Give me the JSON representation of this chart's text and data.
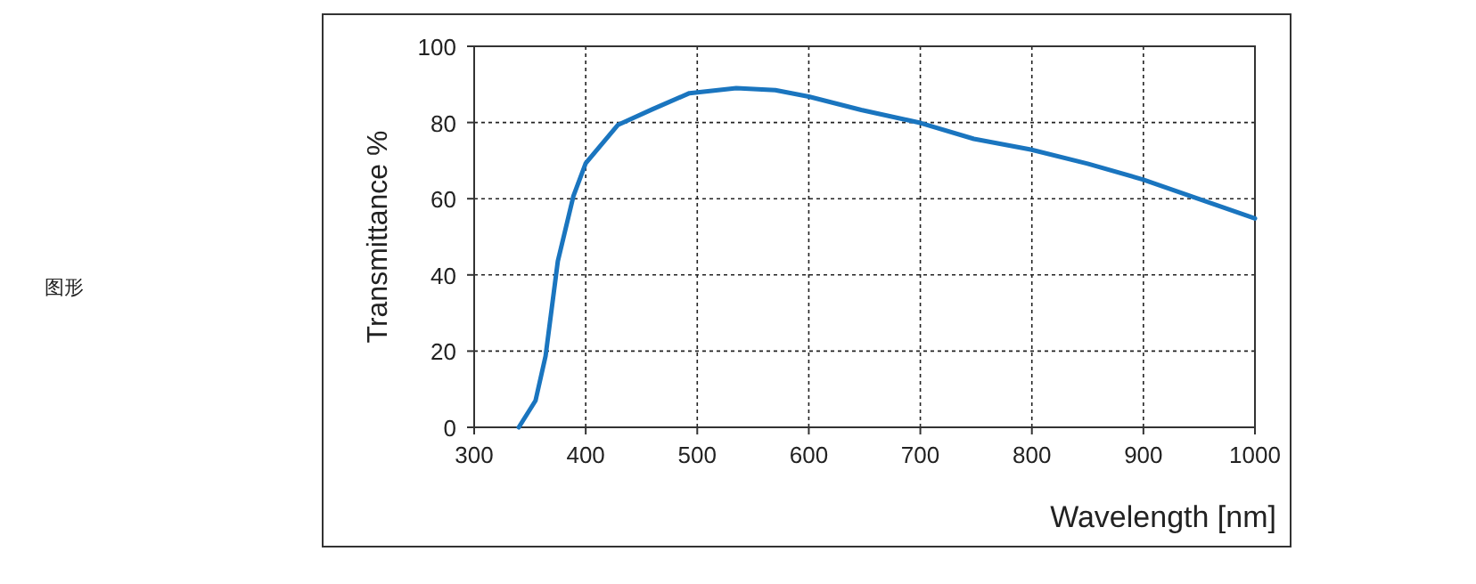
{
  "chart_data": {
    "type": "line",
    "xlabel": "Wavelength [nm]",
    "ylabel": "Transmittance %",
    "annotations": [
      "图形"
    ],
    "xlim": [
      300,
      1000
    ],
    "ylim": [
      0,
      100
    ],
    "xticks": [
      300,
      400,
      500,
      600,
      700,
      800,
      900,
      1000
    ],
    "yticks": [
      0,
      20,
      40,
      60,
      80,
      100
    ],
    "grid": true,
    "series": [
      {
        "color": "#1a75bf",
        "x": [
          340,
          355,
          364,
          375,
          389,
          400,
          429,
          460,
          493,
          535,
          570,
          600,
          647,
          700,
          748,
          799,
          850,
          900,
          950,
          1000
        ],
        "values": [
          0,
          7,
          18.7,
          43.6,
          60.7,
          69.3,
          79.4,
          83.5,
          87.7,
          89,
          88.5,
          86.8,
          83.3,
          79.9,
          75.7,
          72.9,
          69.2,
          65,
          59.9,
          54.8
        ]
      }
    ]
  }
}
